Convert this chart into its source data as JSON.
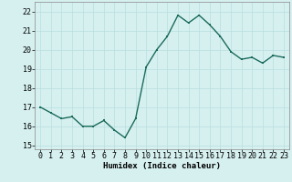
{
  "x": [
    0,
    1,
    2,
    3,
    4,
    5,
    6,
    7,
    8,
    9,
    10,
    11,
    12,
    13,
    14,
    15,
    16,
    17,
    18,
    19,
    20,
    21,
    22,
    23
  ],
  "y": [
    17.0,
    16.7,
    16.4,
    16.5,
    16.0,
    16.0,
    16.3,
    15.8,
    15.4,
    16.4,
    19.1,
    20.0,
    20.7,
    21.8,
    21.4,
    21.8,
    21.3,
    20.7,
    19.9,
    19.5,
    19.6,
    19.3,
    19.7,
    19.6
  ],
  "line_color": "#1a6b5a",
  "marker_color": "#1a6b5a",
  "bg_color": "#d6f0f0",
  "grid_color": "#b8dede",
  "xlabel": "Humidex (Indice chaleur)",
  "ylim": [
    14.8,
    22.5
  ],
  "xlim": [
    -0.5,
    23.5
  ],
  "yticks": [
    15,
    16,
    17,
    18,
    19,
    20,
    21,
    22
  ],
  "xtick_labels": [
    "0",
    "1",
    "2",
    "3",
    "4",
    "5",
    "6",
    "7",
    "8",
    "9",
    "10",
    "11",
    "12",
    "13",
    "14",
    "15",
    "16",
    "17",
    "18",
    "19",
    "20",
    "21",
    "22",
    "23"
  ],
  "xlabel_fontsize": 6.5,
  "tick_fontsize": 6.0,
  "linewidth": 1.0,
  "markersize": 2.0
}
